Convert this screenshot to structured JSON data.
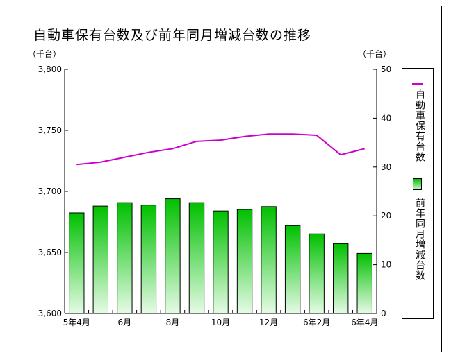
{
  "title": "自動車保有台数及び前年同月増減台数の推移",
  "colors": {
    "line": "#cc00cc",
    "bar_top": "#00c000",
    "bar_bottom": "#e6fbe6"
  },
  "chart_data": {
    "type": "bar+line",
    "title": "自動車保有台数及び前年同月増減台数の推移",
    "x_labels": [
      "5年4月",
      "",
      "6月",
      "",
      "8月",
      "",
      "10月",
      "",
      "12月",
      "",
      "6年2月",
      "",
      "6年4月"
    ],
    "left_axis": {
      "unit": "（千台）",
      "ylim": [
        3600,
        3800
      ],
      "ticks": [
        "3,600",
        "3,650",
        "3,700",
        "3,750",
        "3,800"
      ]
    },
    "right_axis": {
      "unit": "（千台）",
      "ylim": [
        0,
        50
      ],
      "ticks": [
        "0",
        "10",
        "20",
        "30",
        "40",
        "50"
      ]
    },
    "series": [
      {
        "name": "自動車保有台数",
        "kind": "line",
        "axis": "left",
        "values": [
          3722,
          3724,
          3728,
          3732,
          3735,
          3741,
          3742,
          3745,
          3747,
          3747,
          3746,
          3730,
          3735
        ]
      },
      {
        "name": "前年同月増減台数",
        "kind": "bar",
        "axis": "right",
        "values": [
          20.6,
          22.0,
          22.7,
          22.2,
          23.5,
          22.7,
          21.0,
          21.3,
          21.9,
          18.0,
          16.3,
          14.3,
          12.3
        ]
      }
    ],
    "legend": [
      {
        "label": "自動車保有台数",
        "kind": "line"
      },
      {
        "label": "前年同月増減台数",
        "kind": "bar"
      }
    ],
    "legend_position": "right"
  }
}
